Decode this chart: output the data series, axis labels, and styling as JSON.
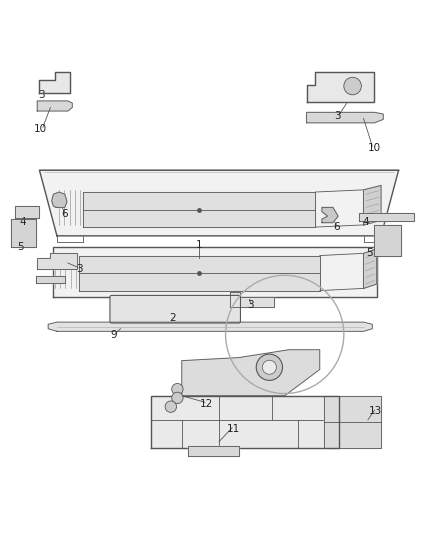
{
  "bg_color": "#ffffff",
  "line_color": "#555555",
  "label_color": "#222222",
  "figsize": [
    4.38,
    5.33
  ],
  "dpi": 100
}
